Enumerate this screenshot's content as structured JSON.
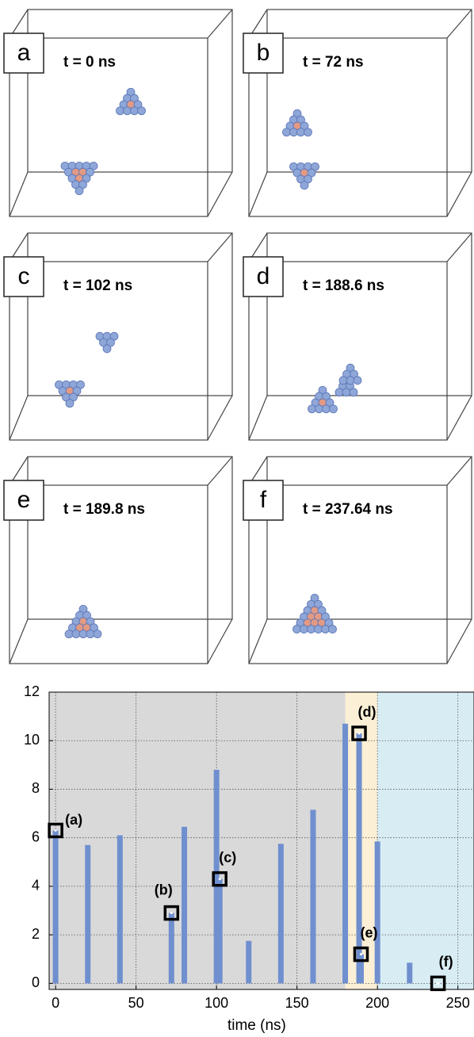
{
  "panels": [
    {
      "letter": "a",
      "time": "t = 0 ns"
    },
    {
      "letter": "b",
      "time": "t = 72 ns"
    },
    {
      "letter": "c",
      "time": "t = 102 ns"
    },
    {
      "letter": "d",
      "time": "t = 188.6 ns"
    },
    {
      "letter": "e",
      "time": "t = 189.8 ns"
    },
    {
      "letter": "f",
      "time": "t = 237.64 ns"
    }
  ],
  "chart_data": {
    "type": "bar",
    "x_label": "time (ns)",
    "x": [
      0,
      20,
      40,
      72,
      80,
      100,
      102,
      120,
      140,
      160,
      180,
      188.6,
      189.8,
      200,
      220,
      237.64
    ],
    "values": [
      6.3,
      5.7,
      6.1,
      2.9,
      6.45,
      8.8,
      4.3,
      1.75,
      5.75,
      7.15,
      10.7,
      10.3,
      1.2,
      5.85,
      0.85,
      0
    ],
    "color": "#6f8fcf",
    "regions": [
      {
        "x0": -4,
        "x1": 180,
        "color": "#d9d9d9"
      },
      {
        "x0": 180,
        "x1": 200,
        "color": "#fbefd6"
      },
      {
        "x0": 200,
        "x1": 260,
        "color": "#d8edf3"
      }
    ],
    "annotations": [
      {
        "x": 0,
        "y": 6.3,
        "label": "(a)"
      },
      {
        "x": 72,
        "y": 2.9,
        "label": "(b)"
      },
      {
        "x": 102,
        "y": 4.3,
        "label": "(c)"
      },
      {
        "x": 188.6,
        "y": 10.3,
        "label": "(d)"
      },
      {
        "x": 189.8,
        "y": 1.2,
        "label": "(e)"
      },
      {
        "x": 237.64,
        "y": 0,
        "label": "(f)"
      }
    ],
    "xlim": [
      -4,
      260
    ],
    "xticks": [
      0,
      50,
      100,
      150,
      200,
      250
    ],
    "ylim": [
      -0.25,
      12
    ],
    "yticks": [
      0,
      2,
      4,
      6,
      8,
      10,
      12
    ],
    "grid": true
  }
}
